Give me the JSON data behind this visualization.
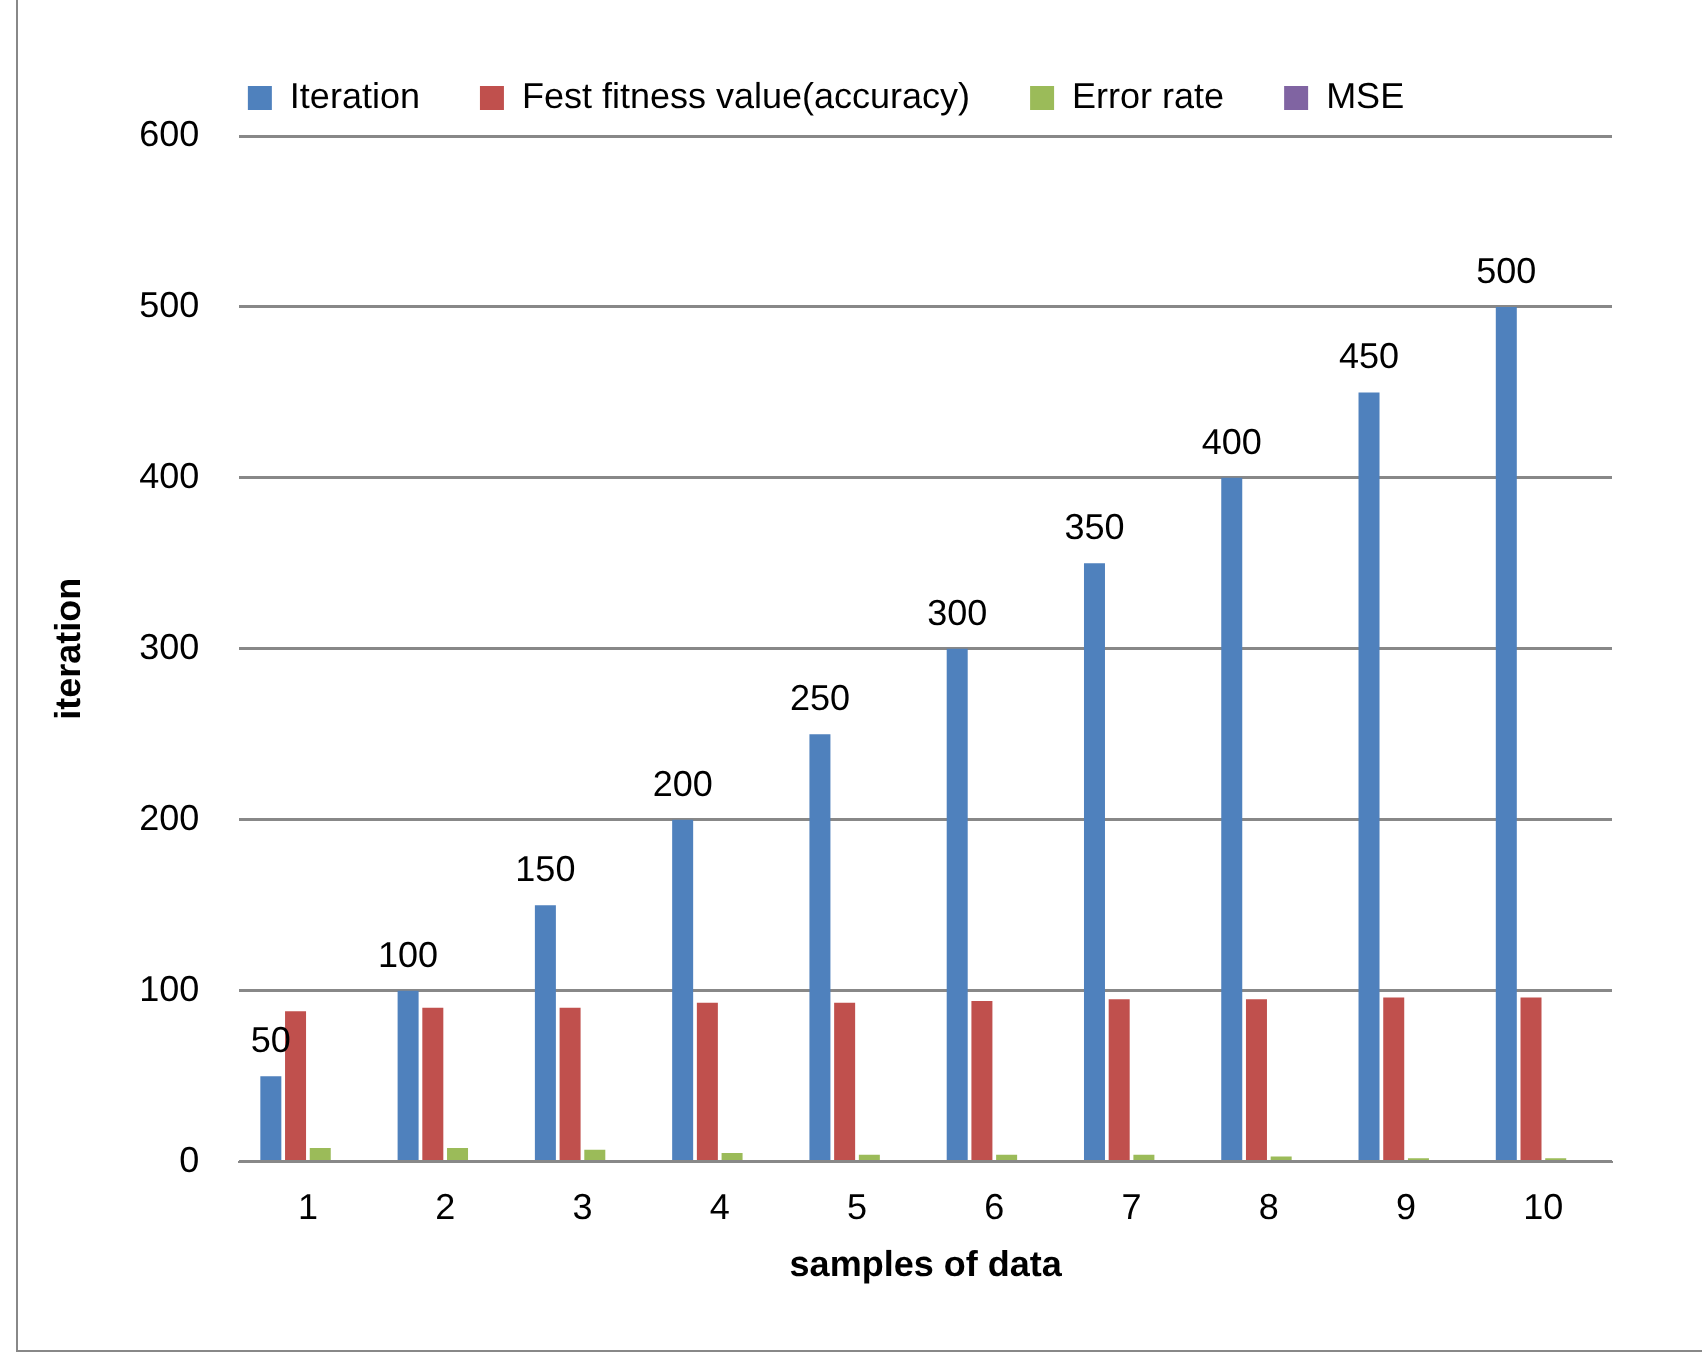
{
  "chart_data": {
    "type": "bar",
    "xlabel": "samples of data",
    "ylabel": "iteration",
    "categories": [
      "1",
      "2",
      "3",
      "4",
      "5",
      "6",
      "7",
      "8",
      "9",
      "10"
    ],
    "series": [
      {
        "name": "Iteration",
        "color": "#4f81bd",
        "values": [
          50,
          100,
          150,
          200,
          250,
          300,
          350,
          400,
          450,
          500
        ],
        "value_labels": [
          "50",
          "100",
          "150",
          "200",
          "250",
          "300",
          "350",
          "400",
          "450",
          "500"
        ]
      },
      {
        "name": "Fest fitness value(accuracy)",
        "color": "#c0504d",
        "values": [
          88,
          90,
          90,
          93,
          93,
          94,
          95,
          95,
          96,
          96
        ]
      },
      {
        "name": "Error rate",
        "color": "#9bbb59",
        "values": [
          8,
          8,
          7,
          5,
          4,
          4,
          4,
          3,
          2,
          2
        ]
      },
      {
        "name": "MSE",
        "color": "#8064a2",
        "values": [
          0,
          0,
          0,
          0,
          0,
          0,
          0,
          0,
          0,
          0
        ]
      }
    ],
    "ylim": [
      0,
      600
    ],
    "yticks": [
      0,
      100,
      200,
      300,
      400,
      500,
      600
    ],
    "grid": "y",
    "legend": "top"
  }
}
